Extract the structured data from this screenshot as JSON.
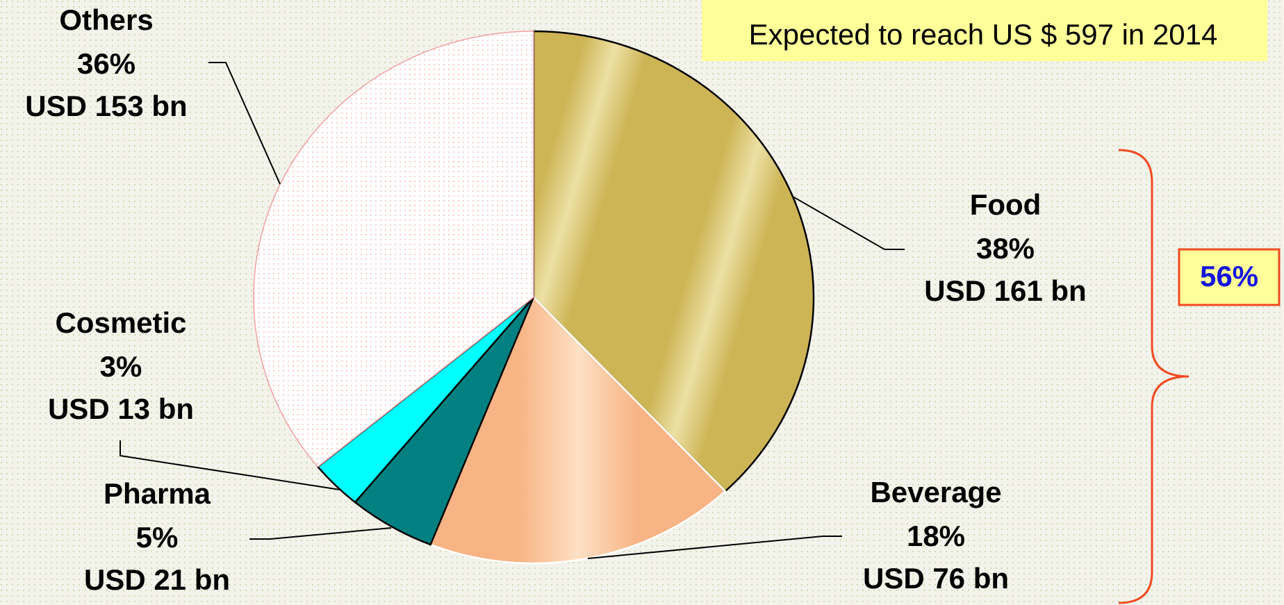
{
  "chart_data": {
    "type": "pie",
    "categories": [
      "Food",
      "Beverage",
      "Pharma",
      "Cosmetic",
      "Others"
    ],
    "values": [
      38,
      18,
      5,
      3,
      36
    ],
    "value_labels": [
      "38%",
      "18%",
      "5%",
      "3%",
      "36%"
    ],
    "amount_labels": [
      "USD 161 bn",
      "USD 76 bn",
      "USD 21 bn",
      "USD 13 bn",
      "USD 153 bn"
    ],
    "colors": [
      "#cdb455",
      "#f8b484",
      "#008080",
      "#00ffff",
      "#fff4f4"
    ],
    "annotations": [
      "Expected to reach US $ 597 in 2014",
      "56%"
    ]
  }
}
